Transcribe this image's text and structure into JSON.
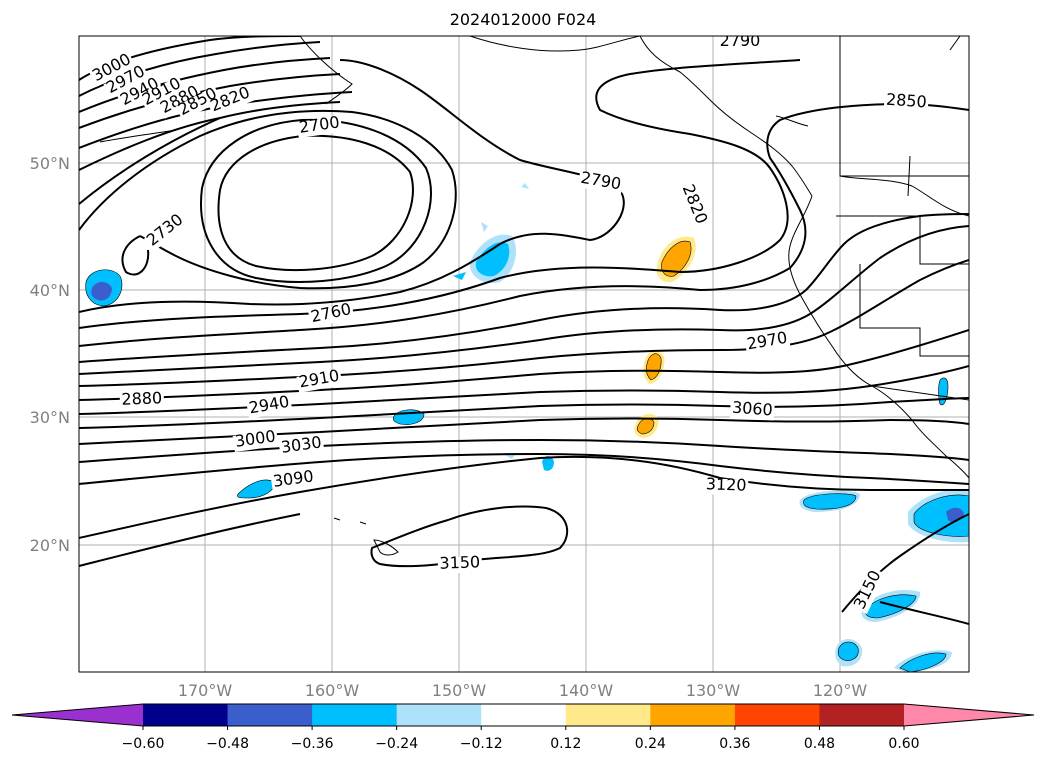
{
  "title": "2024012000 F024",
  "lat_labels": [
    "50°N",
    "40°N",
    "30°N",
    "20°N"
  ],
  "lon_labels": [
    "170°W",
    "160°W",
    "150°W",
    "140°W",
    "130°W",
    "120°W"
  ],
  "contour_labels": [
    "3000",
    "2970",
    "2940",
    "2910",
    "2880",
    "2850",
    "2820",
    "2700",
    "2730",
    "2760",
    "2790",
    "2820",
    "2790",
    "2850",
    "2880",
    "2910",
    "2940",
    "2970",
    "3000",
    "3030",
    "3060",
    "3090",
    "3120",
    "3150",
    "3150"
  ],
  "colorbar": {
    "ticks": [
      "−0.60",
      "−0.48",
      "−0.36",
      "−0.24",
      "−0.12",
      "0.12",
      "0.24",
      "0.36",
      "0.48",
      "0.60"
    ],
    "colors": [
      "#9b30d0",
      "#00008b",
      "#3a5fcd",
      "#00bfff",
      "#aee2fa",
      "#ffffff",
      "#ffe98a",
      "#ffa500",
      "#ff4500",
      "#b22222",
      "#ff88aa"
    ]
  }
}
